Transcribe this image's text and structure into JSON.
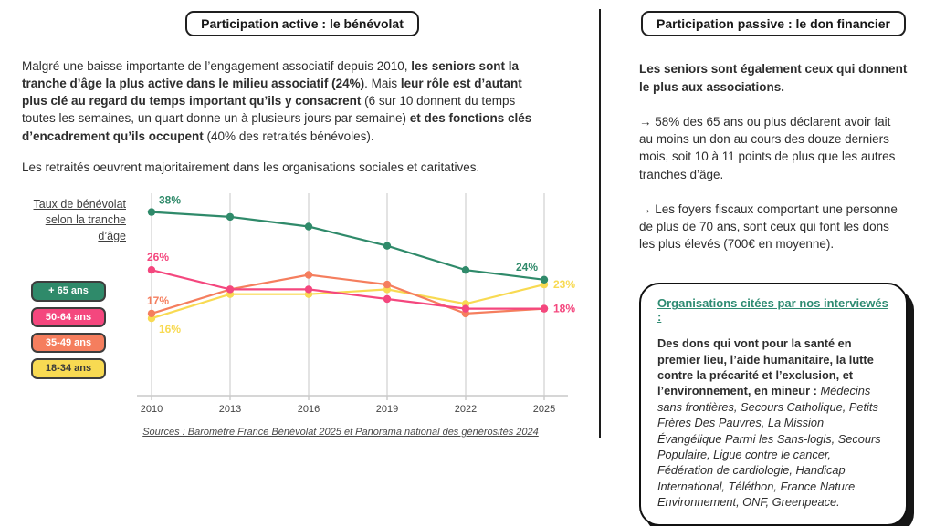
{
  "left": {
    "title": "Participation active : le bénévolat",
    "intro_segments": [
      {
        "text": "Malgré une baisse importante de l’engagement associatif depuis 2010, ",
        "bold": false
      },
      {
        "text": "les seniors sont la tranche d’âge la plus active dans le milieu associatif (24%)",
        "bold": true
      },
      {
        "text": ". Mais ",
        "bold": false
      },
      {
        "text": "leur rôle est d’autant plus clé au regard du temps important qu’ils y consacrent",
        "bold": true
      },
      {
        "text": " (6 sur 10 donnent du temps toutes les semaines, un quart donne un à plusieurs jours par semaine) ",
        "bold": false
      },
      {
        "text": "et des fonctions clés d’encadrement qu’ils occupent",
        "bold": true
      },
      {
        "text": " (40% des retraités bénévoles).",
        "bold": false
      }
    ],
    "paragraph2": "Les retraités oeuvrent majoritairement dans les organisations sociales et caritatives.",
    "sources": "Sources : Baromètre France Bénévolat 2025 et Panorama national des générosités 2024"
  },
  "chart_data": {
    "type": "line",
    "title": "Taux de bénévolat selon la tranche d’âge",
    "x": [
      2010,
      2013,
      2016,
      2019,
      2022,
      2025
    ],
    "ylabel": "Taux de bénévolat (%)",
    "ylim": [
      0,
      42
    ],
    "grid": "vertical",
    "legend_position": "left",
    "series": [
      {
        "name": "+ 65 ans",
        "color": "#2f8a6a",
        "label_text_color": "#ffffff",
        "values": [
          38,
          37,
          35,
          31,
          26,
          24
        ]
      },
      {
        "name": "50-64 ans",
        "color": "#f4477e",
        "label_text_color": "#ffffff",
        "values": [
          26,
          22,
          22,
          20,
          18,
          18
        ]
      },
      {
        "name": "35-49 ans",
        "color": "#f57e5e",
        "label_text_color": "#ffffff",
        "values": [
          17,
          22,
          25,
          23,
          17,
          18
        ]
      },
      {
        "name": "18-34 ans",
        "color": "#f8da52",
        "label_text_color": "#3b3b3b",
        "values": [
          16,
          21,
          21,
          22,
          19,
          23
        ]
      }
    ],
    "annotations": [
      {
        "series": 0,
        "point": 0,
        "text": "38%",
        "placement": "above-right"
      },
      {
        "series": 1,
        "point": 0,
        "text": "26%",
        "placement": "above"
      },
      {
        "series": 2,
        "point": 0,
        "text": "17%",
        "placement": "above"
      },
      {
        "series": 3,
        "point": 0,
        "text": "16%",
        "placement": "below-right"
      },
      {
        "series": 0,
        "point": 5,
        "text": "24%",
        "placement": "above-left"
      },
      {
        "series": 3,
        "point": 5,
        "text": "23%",
        "placement": "right"
      },
      {
        "series": 1,
        "point": 5,
        "text": "18%",
        "placement": "right"
      }
    ]
  },
  "right": {
    "title": "Participation passive : le don financier",
    "lead": "Les seniors sont également ceux qui donnent le plus aux associations.",
    "paragraph1": "→ 58% des 65 ans ou plus déclarent avoir fait au moins un don au cours des douze derniers mois, soit 10 à 11 points de plus que les autres tranches d’âge.",
    "paragraph2": "→ Les foyers fiscaux comportant une personne de plus de 70 ans, sont ceux qui font les dons les plus élevés (700€ en moyenne).",
    "org_box": {
      "heading": "Organisations citées par nos interviewés :",
      "body_segments": [
        {
          "text": "Des dons qui vont pour la santé en premier lieu, l’aide humanitaire, la lutte contre la précarité et l’exclusion, et l’environnement, en mineur :",
          "bold": true
        },
        {
          "text": " ",
          "bold": false
        },
        {
          "text": "Médecins sans frontières, Secours Catholique, Petits Frères Des Pauvres, La Mission Évangélique Parmi les Sans-logis, Secours Populaire, Ligue contre le cancer, Fédération de cardiologie, Handicap International, Téléthon, France Nature Environnement, ONF, Greenpeace.",
          "italic": true
        }
      ],
      "heading_color": "#2e8b72"
    }
  },
  "colors": {
    "text": "#2d2d2d",
    "grid": "#dcdcdc",
    "axis": "#c9c9c9",
    "tick_label": "#444444"
  }
}
